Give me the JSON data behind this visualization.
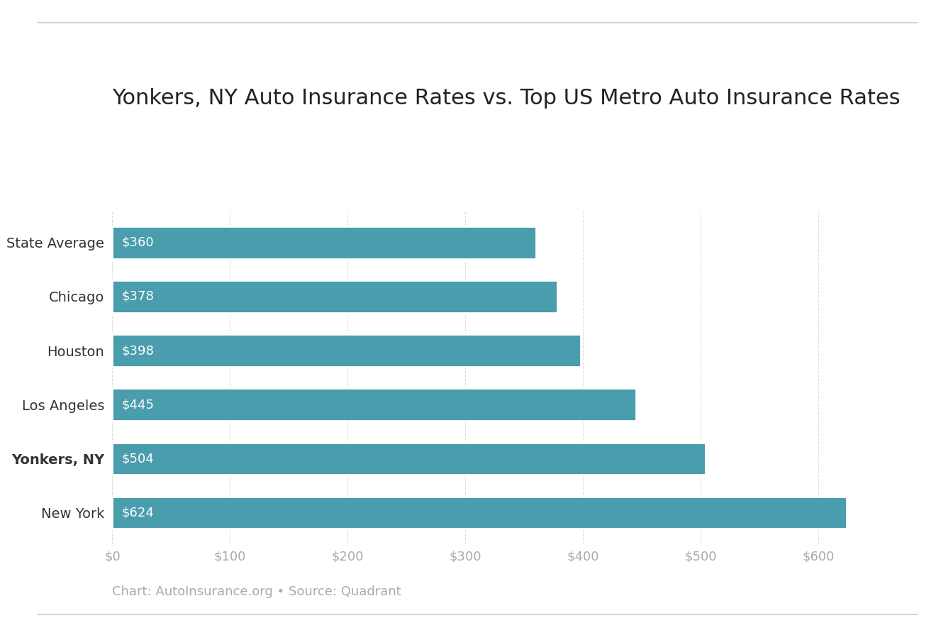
{
  "title": "Yonkers, NY Auto Insurance Rates vs. Top US Metro Auto Insurance Rates",
  "categories": [
    "State Average",
    "Chicago",
    "Houston",
    "Los Angeles",
    "Yonkers, NY",
    "New York"
  ],
  "values": [
    360,
    378,
    398,
    445,
    504,
    624
  ],
  "bar_color": "#4a9dac",
  "label_color": "#ffffff",
  "bold_category": "Yonkers, NY",
  "xlim": [
    0,
    660
  ],
  "xtick_values": [
    0,
    100,
    200,
    300,
    400,
    500,
    600
  ],
  "xtick_labels": [
    "$0",
    "$100",
    "$200",
    "$300",
    "$400",
    "$500",
    "$600"
  ],
  "title_fontsize": 22,
  "tick_fontsize": 13,
  "label_fontsize": 13,
  "category_fontsize": 14,
  "footnote": "Chart: AutoInsurance.org • Source: Quadrant",
  "footnote_fontsize": 13,
  "background_color": "#ffffff",
  "border_color": "#cccccc",
  "footnote_color": "#aaaaaa",
  "tick_color": "#aaaaaa",
  "grid_color": "#dddddd"
}
